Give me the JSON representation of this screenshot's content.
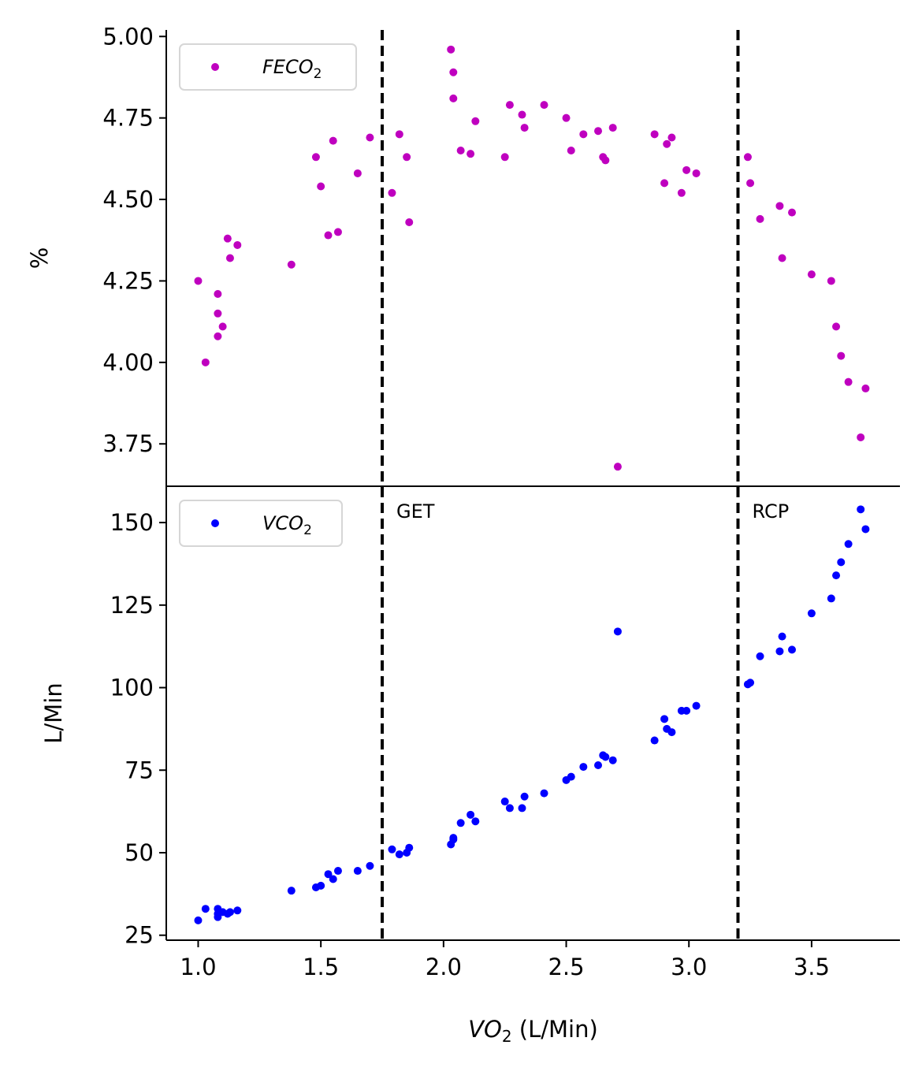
{
  "chart_data": [
    {
      "type": "scatter",
      "panel": "top",
      "ylabel": "%",
      "xlabel": "",
      "xlim": [
        0.87,
        3.86
      ],
      "ylim": [
        3.62,
        5.02
      ],
      "yticks": [
        3.75,
        4.0,
        4.25,
        4.5,
        4.75,
        5.0
      ],
      "ytick_labels": [
        "3.75",
        "4.00",
        "4.25",
        "4.50",
        "4.75",
        "5.00"
      ],
      "legend_placement": "upper-left",
      "grid": false,
      "series": [
        {
          "name": "FECO₂",
          "legend_base": "FECO",
          "legend_sub": "2",
          "color": "#bf00bf",
          "x": [
            1.0,
            1.03,
            1.08,
            1.08,
            1.08,
            1.1,
            1.12,
            1.13,
            1.16,
            1.38,
            1.48,
            1.5,
            1.53,
            1.55,
            1.57,
            1.65,
            1.7,
            1.79,
            1.82,
            1.85,
            1.86,
            2.03,
            2.04,
            2.04,
            2.07,
            2.11,
            2.13,
            2.25,
            2.27,
            2.32,
            2.33,
            2.41,
            2.5,
            2.52,
            2.57,
            2.63,
            2.65,
            2.66,
            2.69,
            2.71,
            2.86,
            2.9,
            2.91,
            2.93,
            2.97,
            2.99,
            3.03,
            3.24,
            3.25,
            3.29,
            3.37,
            3.38,
            3.42,
            3.5,
            3.58,
            3.6,
            3.62,
            3.65,
            3.7,
            3.72
          ],
          "y": [
            4.25,
            4.0,
            4.21,
            4.15,
            4.08,
            4.11,
            4.38,
            4.32,
            4.36,
            4.3,
            4.63,
            4.54,
            4.39,
            4.68,
            4.4,
            4.58,
            4.69,
            4.52,
            4.7,
            4.63,
            4.43,
            4.96,
            4.89,
            4.81,
            4.65,
            4.64,
            4.74,
            4.63,
            4.79,
            4.76,
            4.72,
            4.79,
            4.75,
            4.65,
            4.7,
            4.71,
            4.63,
            4.62,
            4.72,
            3.68,
            4.7,
            4.55,
            4.67,
            4.69,
            4.52,
            4.59,
            4.58,
            4.63,
            4.55,
            4.44,
            4.48,
            4.32,
            4.46,
            4.27,
            4.25,
            4.11,
            4.02,
            3.94,
            3.77,
            3.92
          ]
        }
      ]
    },
    {
      "type": "scatter",
      "panel": "bottom",
      "ylabel": "L/Min",
      "xlabel": "VO₂ (L/Min)",
      "xlabel_base": "VO",
      "xlabel_sub": "2",
      "xlabel_rest": " (L/Min)",
      "xlim": [
        0.87,
        3.86
      ],
      "ylim": [
        23.5,
        161
      ],
      "xticks": [
        1.0,
        1.5,
        2.0,
        2.5,
        3.0,
        3.5
      ],
      "xtick_labels": [
        "1.0",
        "1.5",
        "2.0",
        "2.5",
        "3.0",
        "3.5"
      ],
      "yticks": [
        25,
        50,
        75,
        100,
        125,
        150
      ],
      "ytick_labels": [
        "25",
        "50",
        "75",
        "100",
        "125",
        "150"
      ],
      "legend_placement": "upper-left",
      "grid": false,
      "series": [
        {
          "name": "VCO₂",
          "legend_base": "VCO",
          "legend_sub": "2",
          "color": "#0000ff",
          "x": [
            1.0,
            1.03,
            1.08,
            1.08,
            1.08,
            1.1,
            1.12,
            1.13,
            1.16,
            1.38,
            1.48,
            1.5,
            1.53,
            1.55,
            1.57,
            1.65,
            1.7,
            1.79,
            1.82,
            1.85,
            1.86,
            2.03,
            2.04,
            2.04,
            2.07,
            2.11,
            2.13,
            2.25,
            2.27,
            2.32,
            2.33,
            2.41,
            2.5,
            2.52,
            2.57,
            2.63,
            2.65,
            2.66,
            2.69,
            2.71,
            2.86,
            2.9,
            2.91,
            2.93,
            2.97,
            2.99,
            3.03,
            3.24,
            3.25,
            3.29,
            3.37,
            3.38,
            3.42,
            3.5,
            3.58,
            3.6,
            3.62,
            3.65,
            3.7,
            3.72
          ],
          "y": [
            29.5,
            33,
            30.5,
            31.5,
            33,
            32,
            31.5,
            32,
            32.5,
            38.5,
            39.5,
            40,
            43.5,
            42,
            44.5,
            44.5,
            46,
            51,
            49.5,
            50,
            51.5,
            52.5,
            54,
            54.5,
            59,
            61.5,
            59.5,
            65.5,
            63.5,
            63.5,
            67,
            68,
            72,
            73,
            76,
            76.5,
            79.5,
            79,
            78,
            117,
            84,
            90.5,
            87.5,
            86.5,
            93,
            93,
            94.5,
            101,
            101.5,
            109.5,
            111,
            115.5,
            111.5,
            122.5,
            127,
            134,
            138,
            143.5,
            154,
            148
          ]
        }
      ]
    }
  ],
  "annotations": {
    "vlines": [
      {
        "x": 1.75,
        "label": "GET"
      },
      {
        "x": 3.2,
        "label": "RCP"
      }
    ]
  }
}
